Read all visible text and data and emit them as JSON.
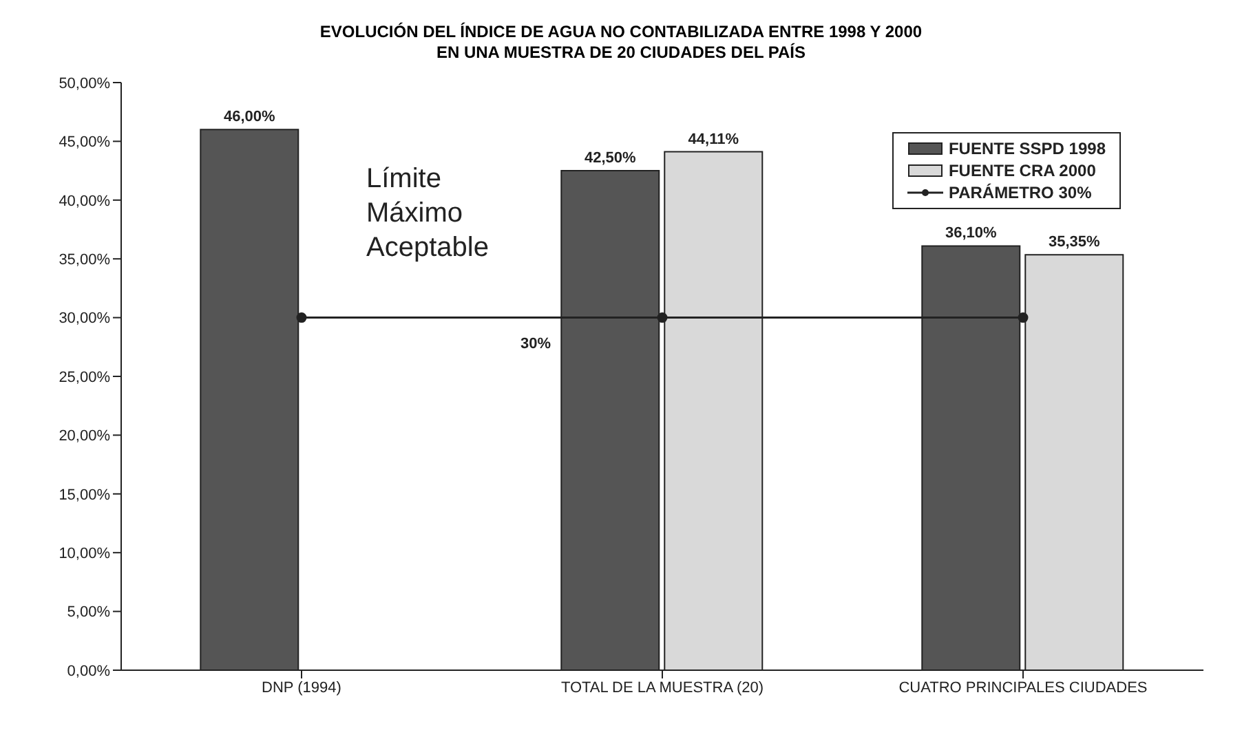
{
  "chart_data": {
    "type": "bar",
    "title": "EVOLUCIÓN DEL ÍNDICE DE AGUA NO CONTABILIZADA  ENTRE 1998 Y 2000",
    "subtitle": "EN UNA MUESTRA DE 20 CIUDADES DEL PAÍS",
    "categories": [
      "DNP (1994)",
      "TOTAL DE LA MUESTRA (20)",
      "CUATRO PRINCIPALES CIUDADES"
    ],
    "series": [
      {
        "name": "FUENTE SSPD 1998",
        "color": "#555555",
        "values": [
          46.0,
          42.5,
          36.1
        ],
        "value_labels": [
          "46,00%",
          "42,50%",
          "36,10%"
        ]
      },
      {
        "name": "FUENTE CRA 2000",
        "color": "#d9d9d9",
        "values": [
          null,
          44.11,
          35.35
        ],
        "value_labels": [
          null,
          "44,11%",
          "35,35%"
        ]
      },
      {
        "name": "PARÁMETRO 30%",
        "type": "line",
        "color": "#222222",
        "values": [
          30,
          30,
          30
        ],
        "marker": "circle",
        "line_style": "solid"
      }
    ],
    "ylim": [
      0,
      50
    ],
    "yticks": [
      {
        "value": 0,
        "label": "0,00%"
      },
      {
        "value": 5,
        "label": "5,00%"
      },
      {
        "value": 10,
        "label": "10,00%"
      },
      {
        "value": 15,
        "label": "15,00%"
      },
      {
        "value": 20,
        "label": "20,00%"
      },
      {
        "value": 25,
        "label": "25,00%"
      },
      {
        "value": 30,
        "label": "30,00%"
      },
      {
        "value": 35,
        "label": "35,00%"
      },
      {
        "value": 40,
        "label": "40,00%"
      },
      {
        "value": 45,
        "label": "45,00%"
      },
      {
        "value": 50,
        "label": "50,00%"
      }
    ],
    "annotations": [
      "Límite Máximo Aceptable",
      {
        "text": "30%",
        "y": 30
      }
    ],
    "grid": false,
    "legend": "top right"
  }
}
